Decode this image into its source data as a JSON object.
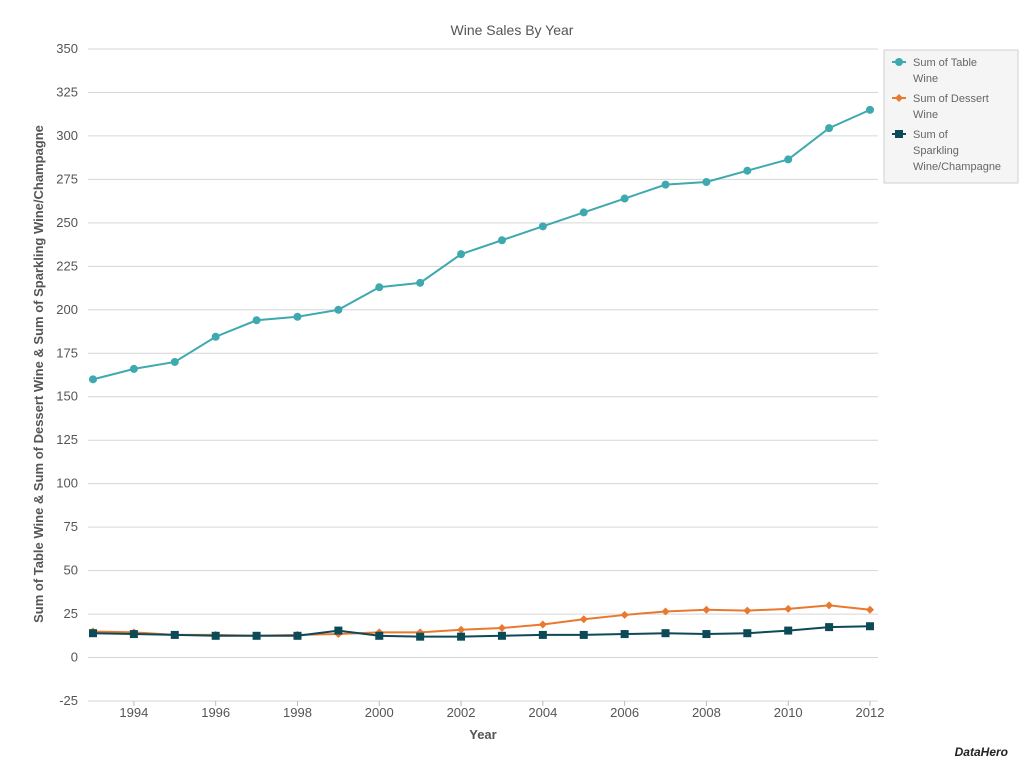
{
  "chart_data": {
    "type": "line",
    "title": "Wine Sales By Year",
    "xlabel": "Year",
    "ylabel": "Sum of Table Wine & Sum of Dessert Wine & Sum of Sparkling Wine/Champagne",
    "ylim": [
      -25,
      350
    ],
    "yticks": [
      "350",
      "325",
      "300",
      "275",
      "250",
      "225",
      "200",
      "175",
      "150",
      "125",
      "100",
      "75",
      "50",
      "25",
      "0",
      "-25"
    ],
    "xlim": [
      1993,
      2012
    ],
    "xticks": [
      "1994",
      "1996",
      "1998",
      "2000",
      "2002",
      "2004",
      "2006",
      "2008",
      "2010",
      "2012"
    ],
    "grid": true,
    "legend_position": "right",
    "x": [
      1993,
      1994,
      1995,
      1996,
      1997,
      1998,
      1999,
      2000,
      2001,
      2002,
      2003,
      2004,
      2005,
      2006,
      2007,
      2008,
      2009,
      2010,
      2011,
      2012
    ],
    "series": [
      {
        "name": "Sum of Table Wine",
        "legend_lines": [
          "Sum of Table",
          "Wine"
        ],
        "color": "#3fa9b0",
        "marker": "circle",
        "values": [
          160,
          166,
          170,
          184.5,
          194,
          196,
          200,
          213,
          215.5,
          232,
          240,
          248,
          256,
          264,
          272,
          273.5,
          280,
          286.5,
          304.5,
          315
        ]
      },
      {
        "name": "Sum of Dessert Wine",
        "legend_lines": [
          "Sum of Dessert",
          "Wine"
        ],
        "color": "#e8792e",
        "marker": "diamond",
        "values": [
          15,
          14.5,
          13,
          13,
          12.5,
          13,
          13.5,
          14.5,
          14.5,
          16,
          17,
          19,
          22,
          24.5,
          26.5,
          27.5,
          27,
          28,
          30,
          27.5
        ]
      },
      {
        "name": "Sum of Sparkling Wine/Champagne",
        "legend_lines": [
          "Sum of",
          "Sparkling",
          "Wine/Champagne"
        ],
        "color": "#0d4a57",
        "marker": "square",
        "values": [
          14,
          13.5,
          13,
          12.5,
          12.5,
          12.5,
          15.5,
          12.5,
          12,
          12,
          12.5,
          13,
          13,
          13.5,
          14,
          13.5,
          14,
          15.5,
          17.5,
          18
        ]
      }
    ]
  },
  "branding": {
    "logo_text": "DataHero"
  }
}
